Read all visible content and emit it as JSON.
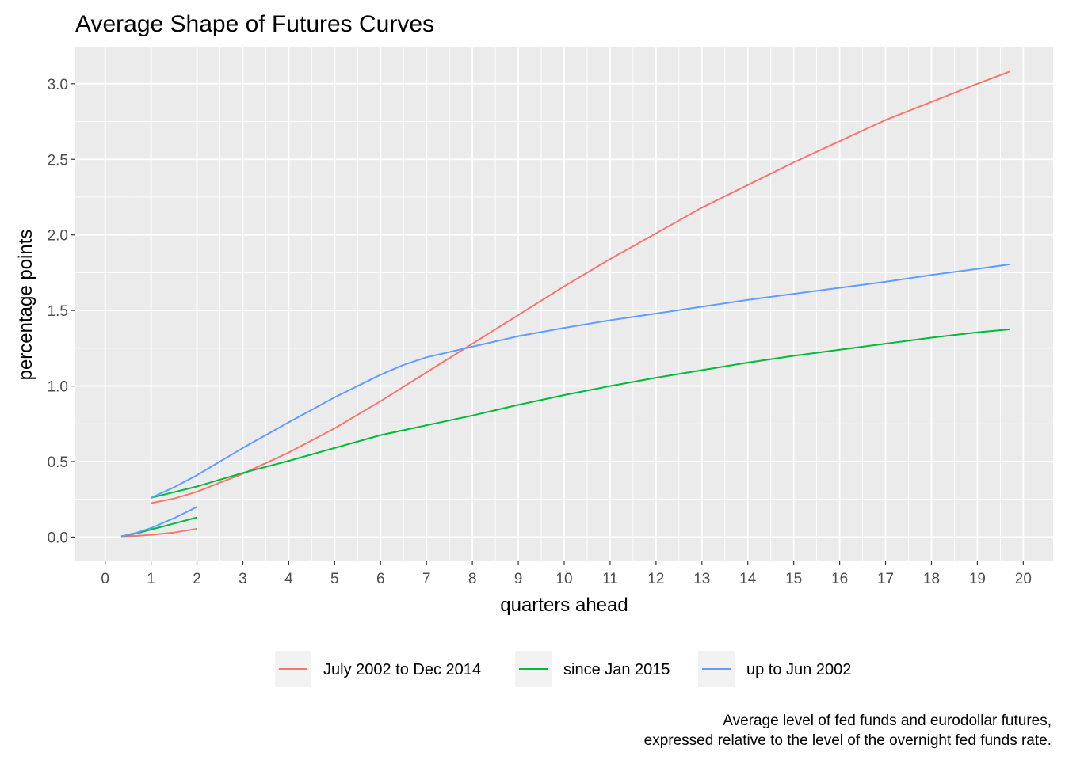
{
  "chart_data": {
    "type": "line",
    "title": "Average Shape of Futures Curves",
    "xlabel": "quarters ahead",
    "ylabel": "percentage points",
    "xlim": [
      -0.65,
      20.65
    ],
    "ylim": [
      -0.16,
      3.24
    ],
    "x_ticks": [
      0,
      1,
      2,
      3,
      4,
      5,
      6,
      7,
      8,
      9,
      10,
      11,
      12,
      13,
      14,
      15,
      16,
      17,
      18,
      19,
      20
    ],
    "y_ticks": [
      0.0,
      0.5,
      1.0,
      1.5,
      2.0,
      2.5,
      3.0
    ],
    "y_tick_labels": [
      "0.0",
      "0.5",
      "1.0",
      "1.5",
      "2.0",
      "2.5",
      "3.0"
    ],
    "grid": true,
    "legend_position": "bottom",
    "caption_lines": [
      "Average level of fed funds and eurodollar futures,",
      "expressed relative to the level of the overnight fed funds rate."
    ],
    "series": [
      {
        "name": "July 2002 to Dec 2014",
        "color": "#F8766D",
        "segments": [
          [
            [
              0.35,
              0.005
            ],
            [
              0.7,
              0.008
            ],
            [
              1.0,
              0.015
            ],
            [
              1.5,
              0.03
            ],
            [
              2.0,
              0.055
            ]
          ],
          [
            [
              1.0,
              0.225
            ],
            [
              1.5,
              0.255
            ],
            [
              2.0,
              0.3
            ],
            [
              2.5,
              0.36
            ],
            [
              3.0,
              0.42
            ],
            [
              4.0,
              0.56
            ],
            [
              5.0,
              0.72
            ],
            [
              6.0,
              0.9
            ],
            [
              7.0,
              1.09
            ],
            [
              8.0,
              1.28
            ],
            [
              9.0,
              1.47
            ],
            [
              10.0,
              1.66
            ],
            [
              11.0,
              1.84
            ],
            [
              12.0,
              2.01
            ],
            [
              13.0,
              2.18
            ],
            [
              14.0,
              2.33
            ],
            [
              15.0,
              2.48
            ],
            [
              16.0,
              2.62
            ],
            [
              17.0,
              2.76
            ],
            [
              18.0,
              2.88
            ],
            [
              19.0,
              3.0
            ],
            [
              19.7,
              3.08
            ]
          ]
        ]
      },
      {
        "name": "since Jan 2015",
        "color": "#00BA38",
        "segments": [
          [
            [
              0.35,
              0.005
            ],
            [
              0.7,
              0.025
            ],
            [
              1.0,
              0.05
            ],
            [
              1.5,
              0.09
            ],
            [
              2.0,
              0.13
            ]
          ],
          [
            [
              1.0,
              0.26
            ],
            [
              2.0,
              0.335
            ],
            [
              3.0,
              0.425
            ],
            [
              4.0,
              0.505
            ],
            [
              5.0,
              0.59
            ],
            [
              6.0,
              0.675
            ],
            [
              7.0,
              0.74
            ],
            [
              8.0,
              0.805
            ],
            [
              9.0,
              0.875
            ],
            [
              10.0,
              0.94
            ],
            [
              11.0,
              1.0
            ],
            [
              12.0,
              1.055
            ],
            [
              13.0,
              1.105
            ],
            [
              14.0,
              1.155
            ],
            [
              15.0,
              1.2
            ],
            [
              16.0,
              1.24
            ],
            [
              17.0,
              1.28
            ],
            [
              18.0,
              1.32
            ],
            [
              19.0,
              1.355
            ],
            [
              19.7,
              1.375
            ]
          ]
        ]
      },
      {
        "name": "up to Jun 2002",
        "color": "#619CFF",
        "segments": [
          [
            [
              0.35,
              0.005
            ],
            [
              0.7,
              0.03
            ],
            [
              1.0,
              0.06
            ],
            [
              1.5,
              0.125
            ],
            [
              2.0,
              0.2
            ]
          ],
          [
            [
              1.0,
              0.26
            ],
            [
              1.5,
              0.33
            ],
            [
              2.0,
              0.41
            ],
            [
              3.0,
              0.59
            ],
            [
              4.0,
              0.76
            ],
            [
              5.0,
              0.925
            ],
            [
              6.0,
              1.075
            ],
            [
              6.5,
              1.14
            ],
            [
              7.0,
              1.19
            ],
            [
              8.0,
              1.26
            ],
            [
              9.0,
              1.33
            ],
            [
              10.0,
              1.385
            ],
            [
              11.0,
              1.435
            ],
            [
              12.0,
              1.48
            ],
            [
              13.0,
              1.525
            ],
            [
              14.0,
              1.57
            ],
            [
              15.0,
              1.61
            ],
            [
              16.0,
              1.65
            ],
            [
              17.0,
              1.69
            ],
            [
              18.0,
              1.735
            ],
            [
              19.0,
              1.775
            ],
            [
              19.7,
              1.805
            ]
          ]
        ]
      }
    ]
  }
}
